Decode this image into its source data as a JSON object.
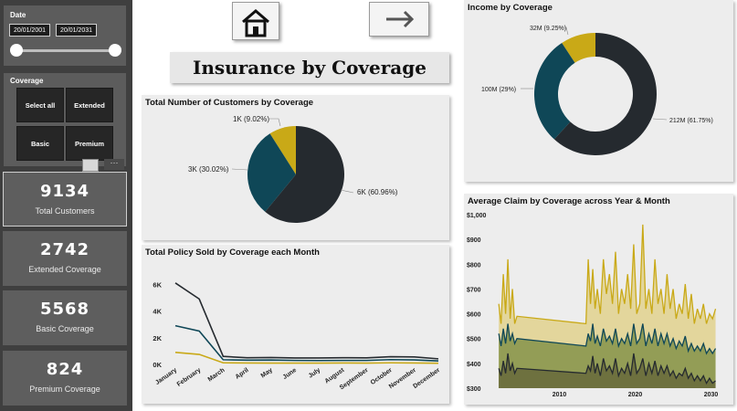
{
  "date_filter": {
    "title": "Date",
    "start": "20/01/2001",
    "end": "20/01/2031"
  },
  "coverage_filter": {
    "title": "Coverage",
    "buttons": [
      "Select all",
      "Extended",
      "Basic",
      "Premium"
    ]
  },
  "kpis": [
    {
      "value": "9134",
      "label": "Total Customers"
    },
    {
      "value": "2742",
      "label": "Extended Coverage"
    },
    {
      "value": "5568",
      "label": "Basic Coverage"
    },
    {
      "value": "824",
      "label": "Premium Coverage"
    }
  ],
  "page_title": "Insurance by Coverage",
  "icons": {
    "home": "home-icon",
    "next": "arrow-right-icon"
  },
  "colors": {
    "basic": "#252a2f",
    "extended": "#0f4757",
    "premium": "#c9a917"
  },
  "chart_data": [
    {
      "type": "pie",
      "title": "Total Number of Customers by Coverage",
      "slices": [
        {
          "label": "6K (60.96%)",
          "value": 60.96,
          "color": "#252a2f"
        },
        {
          "label": "3K (30.02%)",
          "value": 30.02,
          "color": "#0f4757"
        },
        {
          "label": "1K (9.02%)",
          "value": 9.02,
          "color": "#c9a917"
        }
      ]
    },
    {
      "type": "pie",
      "title": "Income by Coverage",
      "donut": true,
      "slices": [
        {
          "label": "212M (61.75%)",
          "value": 61.75,
          "color": "#252a2f"
        },
        {
          "label": "100M (29%)",
          "value": 29,
          "color": "#0f4757"
        },
        {
          "label": "32M (9.25%)",
          "value": 9.25,
          "color": "#c9a917"
        }
      ]
    },
    {
      "type": "line",
      "title": "Total Policy Sold by Coverage each Month",
      "categories": [
        "January",
        "February",
        "March",
        "April",
        "May",
        "June",
        "July",
        "August",
        "September",
        "October",
        "November",
        "December"
      ],
      "yticks": [
        "0K",
        "2K",
        "4K",
        "6K"
      ],
      "ylim": [
        0,
        6500
      ],
      "series": [
        {
          "color": "#252a2f",
          "values": [
            6100,
            4900,
            600,
            500,
            520,
            480,
            480,
            500,
            490,
            580,
            560,
            420
          ]
        },
        {
          "color": "#0f4757",
          "values": [
            2900,
            2500,
            350,
            320,
            330,
            300,
            290,
            300,
            300,
            360,
            340,
            260
          ]
        },
        {
          "color": "#c9a917",
          "values": [
            900,
            750,
            120,
            110,
            100,
            100,
            100,
            110,
            100,
            120,
            110,
            90
          ]
        }
      ]
    },
    {
      "type": "area",
      "title": "Average Claim by Coverage across Year & Month",
      "yticks": [
        "$300",
        "$400",
        "$500",
        "$600",
        "$700",
        "$800",
        "$900",
        "$1,000"
      ],
      "xticks": [
        "2010",
        "2020",
        "2030"
      ],
      "ylim": [
        300,
        1000
      ],
      "xlim": [
        2001.5,
        2031.5
      ],
      "series": [
        {
          "color": "#c9a917",
          "x": [
            2002,
            2002.3,
            2002.6,
            2002.9,
            2003.2,
            2003.5,
            2003.8,
            2004.1,
            2004.4,
            2013.5,
            2013.8,
            2014.1,
            2014.4,
            2014.7,
            2015.0,
            2015.4,
            2015.8,
            2016.2,
            2016.6,
            2017.0,
            2017.4,
            2017.8,
            2018.2,
            2018.6,
            2019.0,
            2019.4,
            2019.8,
            2020.2,
            2020.6,
            2021.0,
            2021.4,
            2021.8,
            2022.2,
            2022.6,
            2023.0,
            2023.4,
            2023.8,
            2024.2,
            2024.6,
            2025.0,
            2025.4,
            2025.8,
            2026.2,
            2026.6,
            2027.0,
            2027.4,
            2027.8,
            2028.2,
            2028.6,
            2029.0,
            2029.4,
            2029.8,
            2030.2,
            2030.6
          ],
          "values": [
            640,
            560,
            760,
            600,
            820,
            580,
            700,
            560,
            590,
            560,
            820,
            640,
            780,
            620,
            700,
            600,
            820,
            680,
            760,
            640,
            850,
            600,
            700,
            640,
            760,
            620,
            880,
            600,
            640,
            960,
            620,
            700,
            600,
            820,
            640,
            700,
            600,
            760,
            620,
            700,
            580,
            640,
            600,
            720,
            580,
            680,
            560,
            620,
            580,
            640,
            560,
            600,
            580,
            620
          ]
        },
        {
          "color": "#0f4757",
          "x": [
            2002,
            2002.3,
            2002.6,
            2002.9,
            2003.2,
            2003.5,
            2003.8,
            2004.1,
            2004.4,
            2013.5,
            2013.8,
            2014.1,
            2014.4,
            2014.7,
            2015.0,
            2015.4,
            2015.8,
            2016.2,
            2016.6,
            2017.0,
            2017.4,
            2017.8,
            2018.2,
            2018.6,
            2019.0,
            2019.4,
            2019.8,
            2020.2,
            2020.6,
            2021.0,
            2021.4,
            2021.8,
            2022.2,
            2022.6,
            2023.0,
            2023.4,
            2023.8,
            2024.2,
            2024.6,
            2025.0,
            2025.4,
            2025.8,
            2026.2,
            2026.6,
            2027.0,
            2027.4,
            2027.8,
            2028.2,
            2028.6,
            2029.0,
            2029.4,
            2029.8,
            2030.2,
            2030.6
          ],
          "values": [
            520,
            470,
            540,
            480,
            560,
            490,
            520,
            480,
            500,
            470,
            520,
            490,
            560,
            480,
            510,
            470,
            540,
            490,
            510,
            480,
            540,
            470,
            500,
            480,
            520,
            470,
            560,
            480,
            500,
            560,
            470,
            520,
            480,
            540,
            470,
            520,
            480,
            520,
            470,
            500,
            460,
            490,
            470,
            510,
            450,
            480,
            450,
            470,
            450,
            480,
            440,
            460,
            440,
            460
          ]
        },
        {
          "color": "#252a2f",
          "x": [
            2002,
            2002.3,
            2002.6,
            2002.9,
            2003.2,
            2003.5,
            2003.8,
            2004.1,
            2004.4,
            2013.5,
            2013.8,
            2014.1,
            2014.4,
            2014.7,
            2015.0,
            2015.4,
            2015.8,
            2016.2,
            2016.6,
            2017.0,
            2017.4,
            2017.8,
            2018.2,
            2018.6,
            2019.0,
            2019.4,
            2019.8,
            2020.2,
            2020.6,
            2021.0,
            2021.4,
            2021.8,
            2022.2,
            2022.6,
            2023.0,
            2023.4,
            2023.8,
            2024.2,
            2024.6,
            2025.0,
            2025.4,
            2025.8,
            2026.2,
            2026.6,
            2027.0,
            2027.4,
            2027.8,
            2028.2,
            2028.6,
            2029.0,
            2029.4,
            2029.8,
            2030.2,
            2030.6
          ],
          "values": [
            380,
            350,
            410,
            360,
            440,
            370,
            400,
            360,
            380,
            360,
            390,
            370,
            430,
            360,
            400,
            350,
            420,
            370,
            390,
            360,
            420,
            350,
            380,
            360,
            400,
            350,
            440,
            360,
            380,
            420,
            350,
            400,
            360,
            410,
            350,
            390,
            360,
            390,
            350,
            370,
            340,
            360,
            350,
            380,
            340,
            360,
            330,
            350,
            330,
            350,
            320,
            340,
            320,
            330
          ]
        }
      ]
    }
  ]
}
